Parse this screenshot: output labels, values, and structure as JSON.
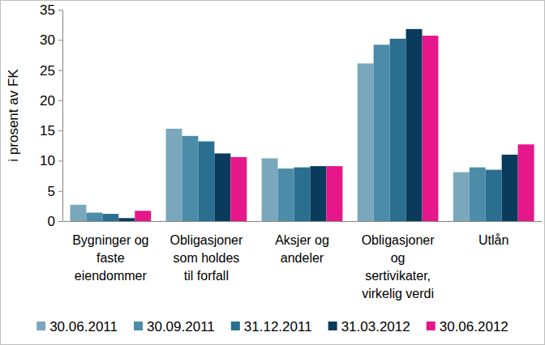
{
  "chart_data": {
    "type": "bar",
    "y_label": "i prosent av FK",
    "categories": [
      "Bygninger og\nfaste\neiendommer",
      "Obligasjoner\nsom holdes\ntil forfall",
      "Aksjer og\nandeler",
      "Obligasjoner\nog\nsertivikater,\nvirkelig verdi",
      "Utlån"
    ],
    "series": [
      {
        "name": "30.06.2011",
        "color": "#7ba7bd",
        "values": [
          2.7,
          15.3,
          10.4,
          26.1,
          8.1
        ]
      },
      {
        "name": "30.09.2011",
        "color": "#4d8ca9",
        "values": [
          1.4,
          14.1,
          8.7,
          29.2,
          8.9
        ]
      },
      {
        "name": "31.12.2011",
        "color": "#2a6f8f",
        "values": [
          1.2,
          13.2,
          8.9,
          30.2,
          8.5
        ]
      },
      {
        "name": "31.03.2012",
        "color": "#0a3b5c",
        "values": [
          0.5,
          11.2,
          9.1,
          31.8,
          11.0
        ]
      },
      {
        "name": "30.06.2012",
        "color": "#e6168b",
        "values": [
          1.7,
          10.6,
          9.1,
          30.7,
          12.7
        ]
      }
    ],
    "ylim": [
      0,
      35
    ],
    "yticks": [
      0,
      5,
      10,
      15,
      20,
      25,
      30,
      35
    ],
    "grid": false,
    "legend": "bottom"
  }
}
